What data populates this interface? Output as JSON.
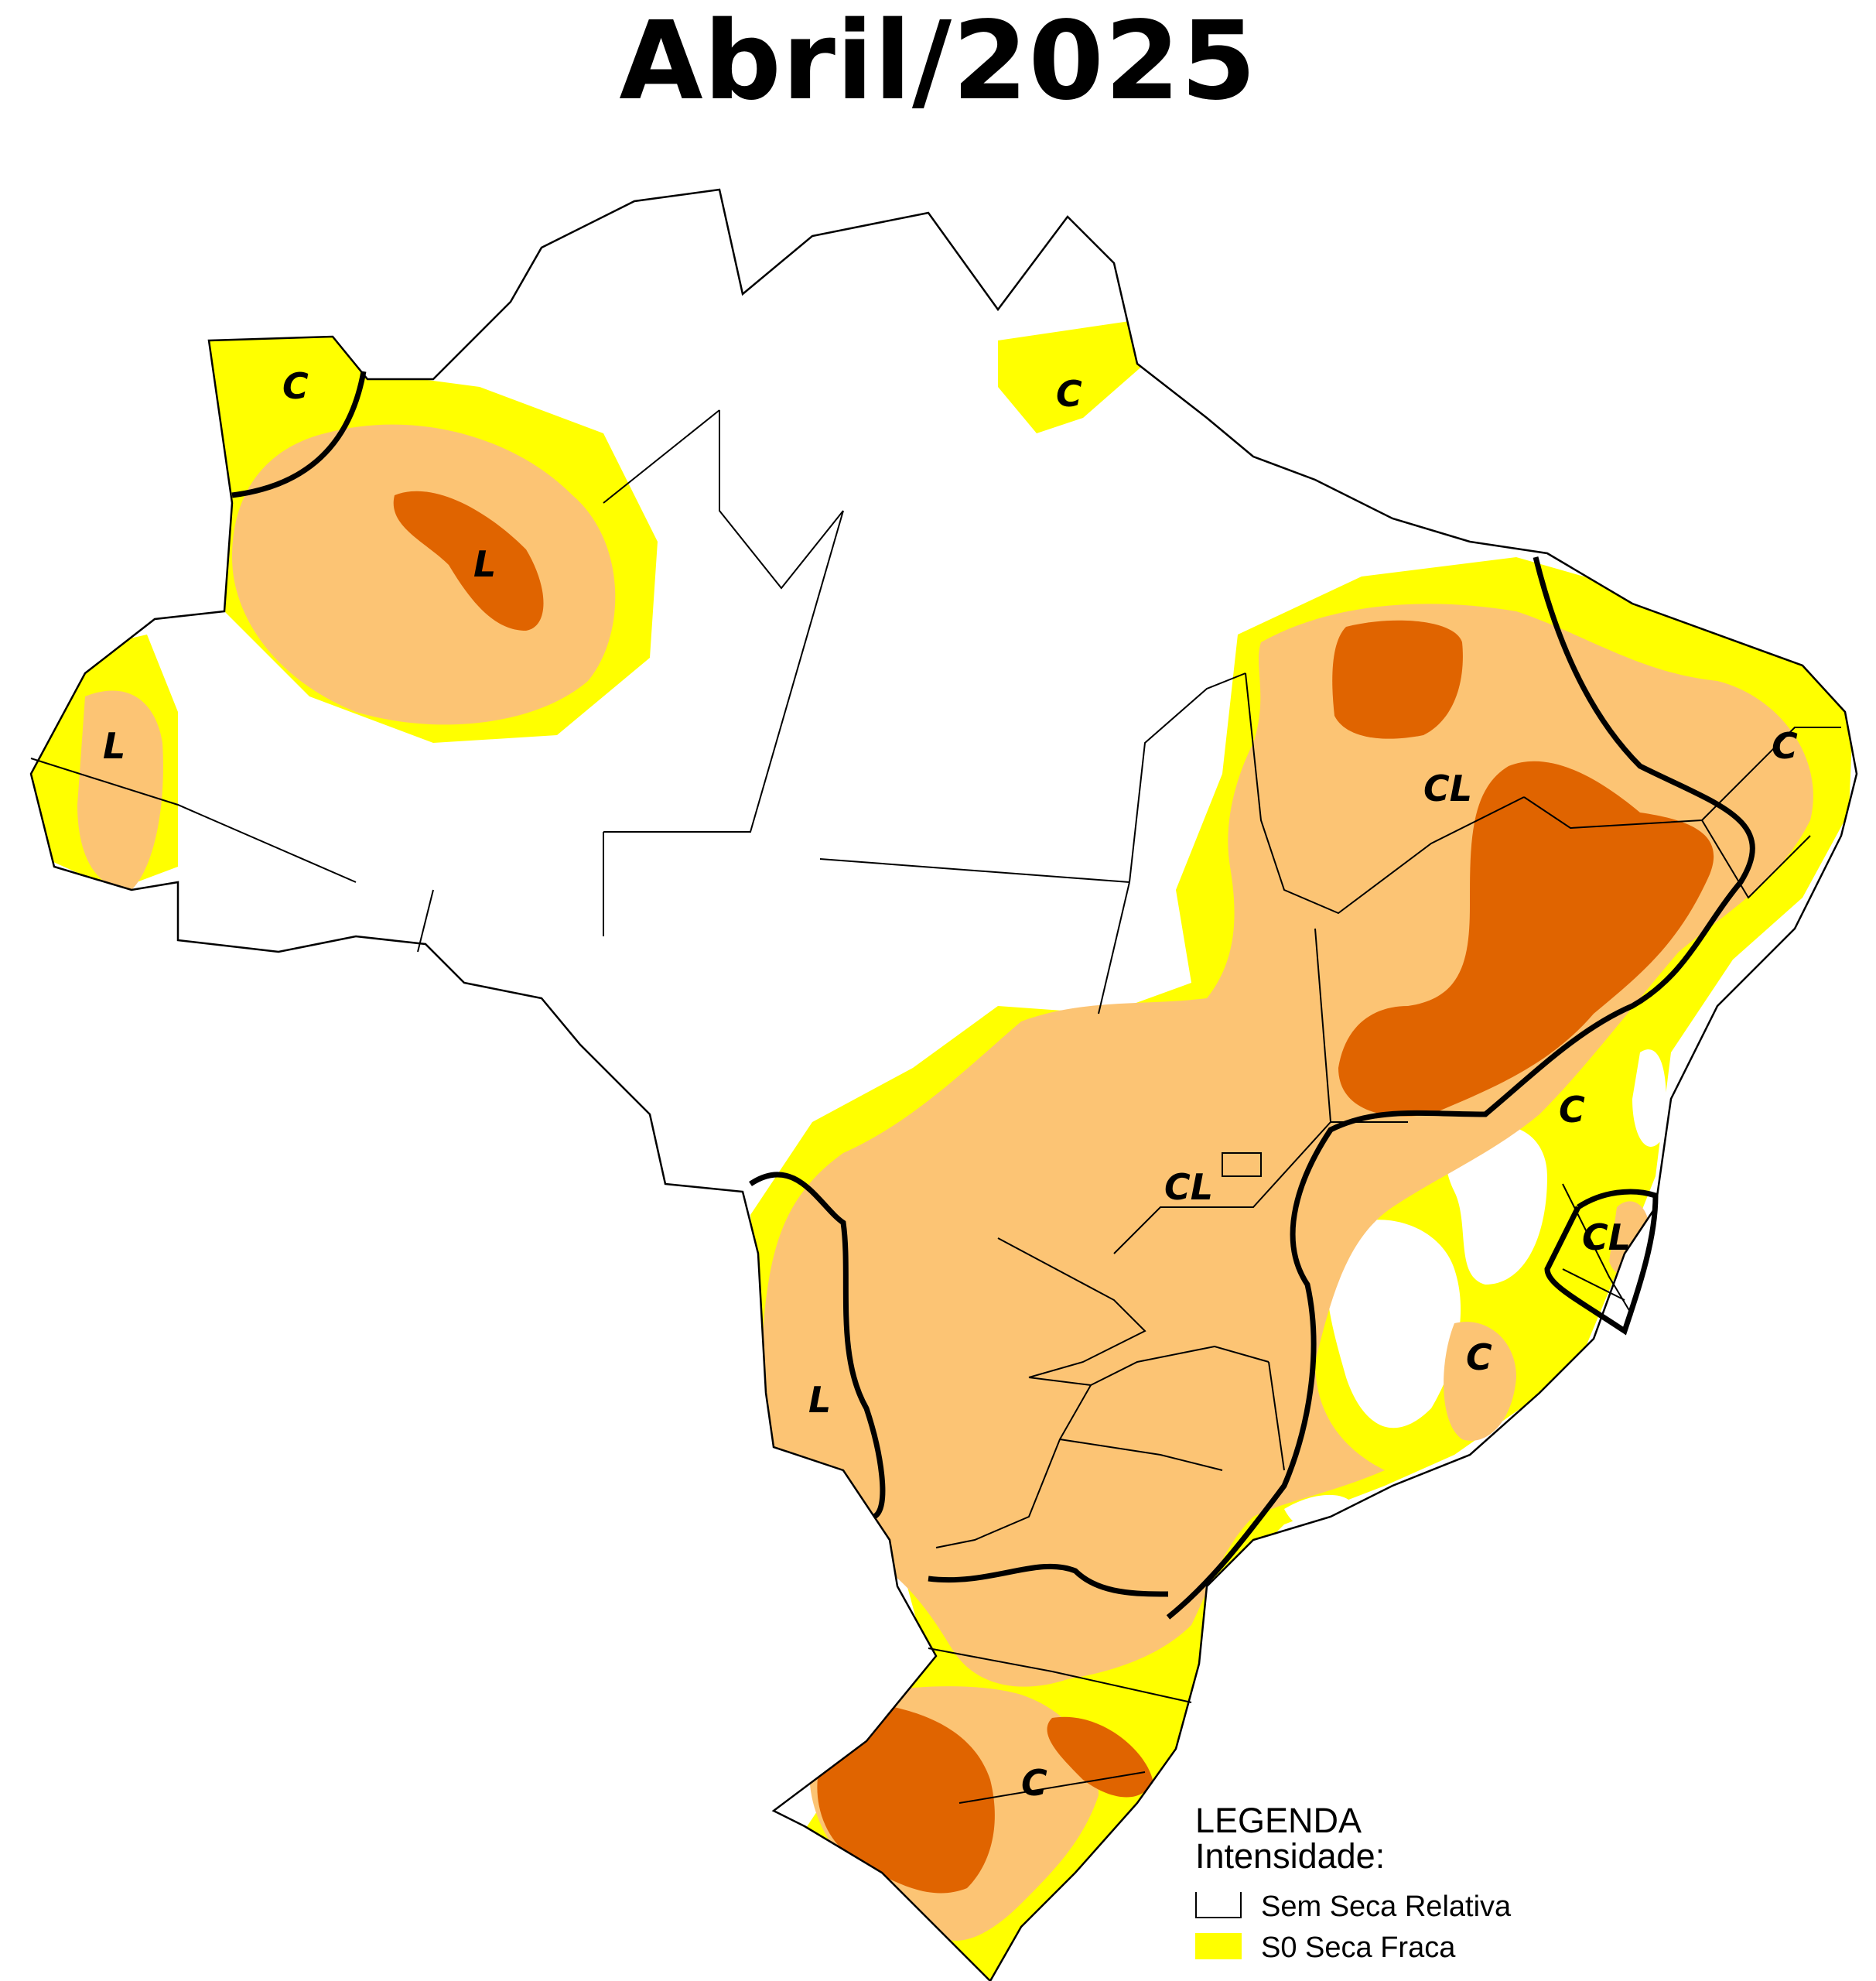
{
  "title": "Abril/2025",
  "colors": {
    "none": "#ffffff",
    "s0": "#ffff00",
    "s1": "#fcc474",
    "s2": "#e06400",
    "border": "#000000"
  },
  "labels": [
    "C",
    "C",
    "L",
    "L",
    "CL",
    "C",
    "CL",
    "CL",
    "C",
    "L",
    "C",
    "C"
  ],
  "legend": {
    "heading": "LEGENDA",
    "subheading": "Intensidade:",
    "items": [
      {
        "label": "Sem Seca Relativa",
        "color": "#ffffff"
      },
      {
        "label": "S0 Seca Fraca",
        "color": "#ffff00"
      }
    ]
  }
}
